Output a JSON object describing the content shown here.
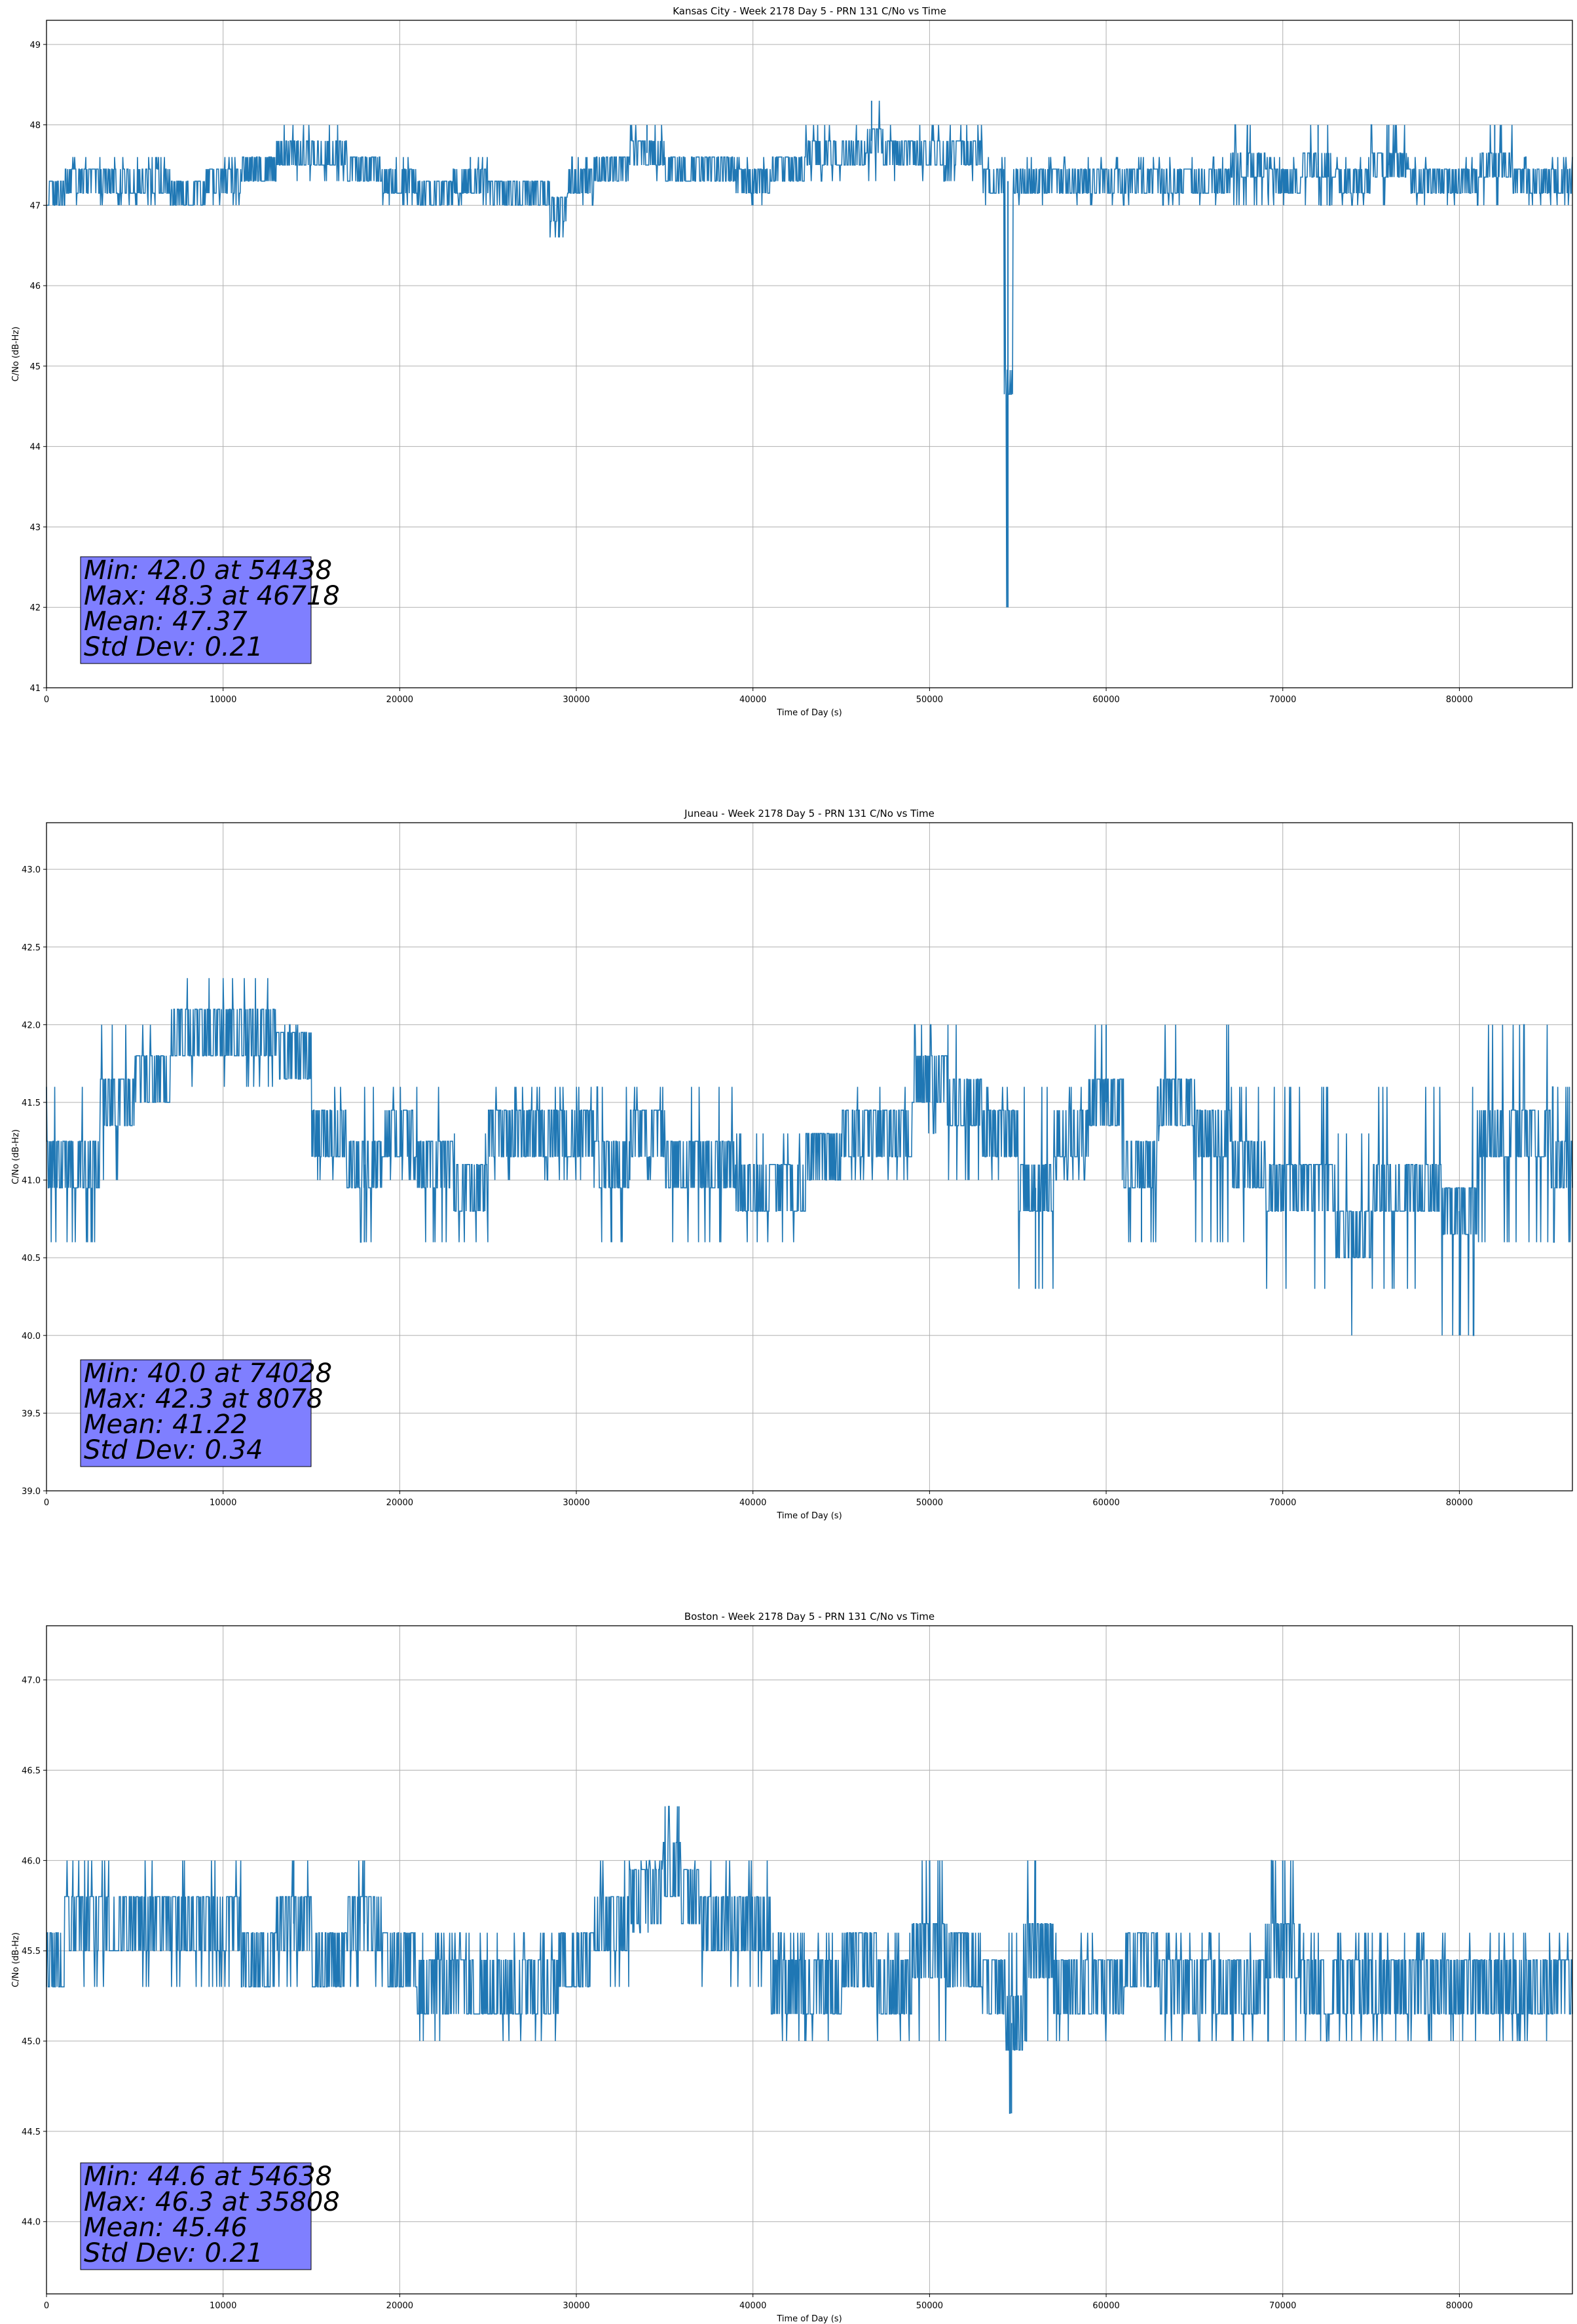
{
  "chart_data": [
    {
      "type": "line",
      "title": "Kansas City - Week 2178 Day 5 - PRN 131 C/No vs Time",
      "xlabel": "Time of Day (s)",
      "ylabel": "C/No (dB-Hz)",
      "xlim": [
        0,
        86400
      ],
      "ylim": [
        41,
        49.3
      ],
      "xticks": [
        0,
        10000,
        20000,
        30000,
        40000,
        50000,
        60000,
        70000,
        80000
      ],
      "xtick_labels": [
        "0",
        "10000",
        "20000",
        "30000",
        "40000",
        "50000",
        "60000",
        "70000",
        "80000"
      ],
      "yticks": [
        41,
        42,
        43,
        44,
        45,
        46,
        47,
        48,
        49
      ],
      "ytick_labels": [
        "41",
        "42",
        "43",
        "44",
        "45",
        "46",
        "47",
        "48",
        "49"
      ],
      "grid": true,
      "series_color": "#1f77b4",
      "series": [
        {
          "name": "C/No",
          "x": [
            0,
            2000,
            4000,
            6000,
            8000,
            10000,
            12000,
            14000,
            16000,
            18000,
            20000,
            22000,
            24000,
            26000,
            28000,
            29000,
            30000,
            32000,
            34000,
            36000,
            38000,
            40000,
            42000,
            44000,
            46000,
            46718,
            48000,
            50000,
            52000,
            54000,
            54438,
            55000,
            56000,
            58000,
            60000,
            62000,
            64000,
            66000,
            68000,
            70000,
            72000,
            74000,
            76000,
            78000,
            80000,
            82000,
            84000,
            86400
          ],
          "low": [
            47.0,
            47.0,
            47.0,
            47.0,
            47.0,
            47.0,
            47.3,
            47.3,
            47.3,
            47.3,
            47.0,
            47.0,
            47.0,
            47.0,
            47.0,
            46.6,
            47.0,
            47.3,
            47.3,
            47.3,
            47.3,
            47.0,
            47.3,
            47.3,
            47.3,
            47.3,
            47.3,
            47.3,
            47.3,
            47.0,
            42.0,
            47.0,
            47.0,
            47.0,
            47.0,
            47.0,
            47.0,
            47.0,
            47.0,
            47.0,
            47.0,
            47.0,
            47.0,
            47.0,
            47.0,
            47.0,
            47.0,
            47.0
          ],
          "high": [
            47.3,
            47.6,
            47.6,
            47.6,
            47.3,
            47.6,
            47.6,
            48.0,
            48.0,
            47.6,
            47.6,
            47.3,
            47.6,
            47.3,
            47.3,
            47.3,
            47.6,
            47.6,
            48.0,
            47.6,
            47.6,
            47.6,
            47.6,
            48.0,
            48.0,
            48.3,
            48.0,
            48.0,
            48.0,
            47.6,
            47.6,
            47.6,
            47.6,
            47.6,
            47.6,
            47.6,
            47.6,
            47.6,
            48.0,
            47.6,
            48.0,
            47.6,
            48.0,
            47.6,
            47.6,
            48.0,
            47.6,
            47.6
          ]
        }
      ],
      "stats": [
        "Min: 42.0 at 54438",
        "Max: 48.3 at 46718",
        "Mean: 47.37",
        "Std Dev: 0.21"
      ]
    },
    {
      "type": "line",
      "title": "Juneau - Week 2178 Day 5 - PRN 131 C/No vs Time",
      "xlabel": "Time of Day (s)",
      "ylabel": "C/No (dB-Hz)",
      "xlim": [
        0,
        86400
      ],
      "ylim": [
        39.0,
        43.3
      ],
      "xticks": [
        0,
        10000,
        20000,
        30000,
        40000,
        50000,
        60000,
        70000,
        80000
      ],
      "xtick_labels": [
        "0",
        "10000",
        "20000",
        "30000",
        "40000",
        "50000",
        "60000",
        "70000",
        "80000"
      ],
      "yticks": [
        39.0,
        39.5,
        40.0,
        40.5,
        41.0,
        41.5,
        42.0,
        42.5,
        43.0
      ],
      "ytick_labels": [
        "39.0",
        "39.5",
        "40.0",
        "40.5",
        "41.0",
        "41.5",
        "42.0",
        "42.5",
        "43.0"
      ],
      "grid": true,
      "series_color": "#1f77b4",
      "series": [
        {
          "name": "C/No",
          "x": [
            0,
            2000,
            4000,
            6000,
            8000,
            8078,
            10000,
            12000,
            14000,
            16000,
            18000,
            20000,
            22000,
            24000,
            26000,
            28000,
            30000,
            32000,
            34000,
            36000,
            38000,
            40000,
            42000,
            44000,
            46000,
            48000,
            50000,
            52000,
            54000,
            56000,
            58000,
            60000,
            62000,
            64000,
            66000,
            68000,
            70000,
            72000,
            74000,
            74028,
            76000,
            78000,
            80000,
            82000,
            84000,
            86400
          ],
          "low": [
            40.6,
            40.6,
            41.0,
            41.3,
            41.6,
            41.6,
            41.6,
            41.6,
            41.6,
            41.0,
            40.6,
            41.0,
            40.6,
            40.6,
            41.0,
            41.0,
            41.0,
            40.6,
            41.0,
            40.6,
            40.6,
            40.6,
            40.6,
            41.0,
            41.0,
            41.0,
            41.3,
            41.0,
            41.0,
            40.3,
            41.0,
            41.0,
            40.6,
            41.0,
            40.6,
            40.6,
            40.3,
            40.3,
            40.0,
            40.0,
            40.3,
            40.3,
            40.0,
            40.6,
            40.6,
            40.6
          ],
          "high": [
            41.6,
            41.6,
            42.0,
            42.0,
            42.3,
            42.3,
            42.3,
            42.3,
            42.0,
            41.6,
            41.6,
            41.6,
            41.6,
            41.3,
            41.6,
            41.6,
            41.6,
            41.6,
            41.6,
            41.6,
            41.6,
            41.3,
            41.3,
            41.3,
            41.6,
            41.6,
            42.0,
            42.0,
            41.6,
            41.6,
            41.6,
            42.0,
            41.6,
            42.0,
            42.0,
            41.6,
            41.6,
            41.6,
            41.3,
            41.3,
            41.6,
            41.6,
            41.6,
            42.0,
            42.0,
            41.6
          ]
        }
      ],
      "stats": [
        "Min: 40.0 at 74028",
        "Max: 42.3 at 8078",
        "Mean: 41.22",
        "Std Dev: 0.34"
      ]
    },
    {
      "type": "line",
      "title": "Boston - Week 2178 Day 5 - PRN 131 C/No vs Time",
      "xlabel": "Time of Day (s)",
      "ylabel": "C/No (dB-Hz)",
      "xlim": [
        0,
        86400
      ],
      "ylim": [
        43.6,
        47.3
      ],
      "xticks": [
        0,
        10000,
        20000,
        30000,
        40000,
        50000,
        60000,
        70000,
        80000
      ],
      "xtick_labels": [
        "0",
        "10000",
        "20000",
        "30000",
        "40000",
        "50000",
        "60000",
        "70000",
        "80000"
      ],
      "yticks": [
        44.0,
        44.5,
        45.0,
        45.5,
        46.0,
        46.5,
        47.0
      ],
      "ytick_labels": [
        "44.0",
        "44.5",
        "45.0",
        "45.5",
        "46.0",
        "46.5",
        "47.0"
      ],
      "grid": true,
      "series_color": "#1f77b4",
      "series": [
        {
          "name": "C/No",
          "x": [
            0,
            2000,
            4000,
            6000,
            8000,
            10000,
            12000,
            14000,
            16000,
            18000,
            20000,
            22000,
            24000,
            26000,
            28000,
            30000,
            32000,
            34000,
            35808,
            36000,
            38000,
            40000,
            42000,
            44000,
            46000,
            48000,
            50000,
            52000,
            54000,
            54638,
            56000,
            58000,
            60000,
            62000,
            64000,
            66000,
            68000,
            70000,
            72000,
            74000,
            76000,
            78000,
            80000,
            82000,
            84000,
            86400
          ],
          "low": [
            45.3,
            45.3,
            45.3,
            45.3,
            45.3,
            45.3,
            45.3,
            45.3,
            45.3,
            45.3,
            45.3,
            45.0,
            45.0,
            45.0,
            45.0,
            45.3,
            45.3,
            45.6,
            45.6,
            45.6,
            45.3,
            45.3,
            45.0,
            45.0,
            45.3,
            45.0,
            45.0,
            45.3,
            45.0,
            44.6,
            45.0,
            45.0,
            45.0,
            45.3,
            45.0,
            45.0,
            45.0,
            45.0,
            45.0,
            45.0,
            45.0,
            45.0,
            45.0,
            45.0,
            45.0,
            45.0
          ],
          "high": [
            45.6,
            46.0,
            46.0,
            46.0,
            46.0,
            46.0,
            45.6,
            46.0,
            45.6,
            46.0,
            45.6,
            45.6,
            45.6,
            45.6,
            45.6,
            45.6,
            46.0,
            46.0,
            46.3,
            46.0,
            46.0,
            46.0,
            45.6,
            45.6,
            45.6,
            45.6,
            46.0,
            45.6,
            45.6,
            45.6,
            46.0,
            45.6,
            45.6,
            45.6,
            45.6,
            45.6,
            45.6,
            46.0,
            45.6,
            45.6,
            45.6,
            45.6,
            45.6,
            45.6,
            45.6,
            45.6
          ]
        }
      ],
      "stats": [
        "Min: 44.6 at 54638",
        "Max: 46.3 at 35808",
        "Mean: 45.46",
        "Std Dev: 0.21"
      ]
    }
  ]
}
